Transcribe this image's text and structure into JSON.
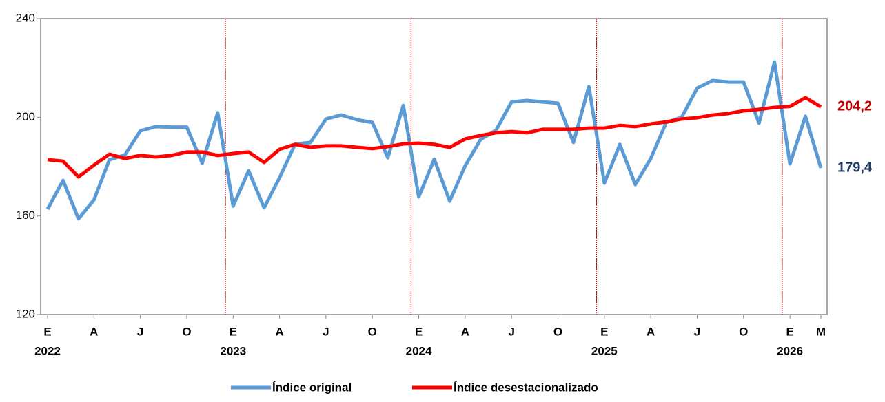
{
  "chart_data": {
    "type": "line",
    "categories": [
      "E",
      null,
      null,
      "A",
      null,
      null,
      "J",
      null,
      null,
      "O",
      null,
      null,
      "E",
      null,
      null,
      "A",
      null,
      null,
      "J",
      null,
      null,
      "O",
      null,
      null,
      "E",
      null,
      null,
      "A",
      null,
      null,
      "J",
      null,
      null,
      "O",
      null,
      null,
      "E",
      null,
      null,
      "A",
      null,
      null,
      "J",
      null,
      null,
      "O",
      null,
      null,
      "E",
      null,
      "M"
    ],
    "years": [
      "2022",
      null,
      null,
      null,
      null,
      null,
      null,
      null,
      null,
      null,
      null,
      null,
      "2023",
      null,
      null,
      null,
      null,
      null,
      null,
      null,
      null,
      null,
      null,
      null,
      "2024",
      null,
      null,
      null,
      null,
      null,
      null,
      null,
      null,
      null,
      null,
      null,
      "2025",
      null,
      null,
      null,
      null,
      null,
      null,
      null,
      null,
      null,
      null,
      null,
      "2026",
      null,
      null
    ],
    "series": [
      {
        "name": "Índice original",
        "color": "#5B9BD5",
        "label_color": "#1F3864",
        "end_label": "179,4",
        "values": [
          162.7,
          174.4,
          158.8,
          166.5,
          182.8,
          184.7,
          194.5,
          196.2,
          196,
          196,
          181.4,
          201.8,
          164,
          178.3,
          163.3,
          175.5,
          189,
          189.8,
          199.3,
          200.9,
          199,
          197.9,
          183.6,
          204.8,
          167.7,
          183,
          166,
          180.3,
          191,
          194.8,
          206.2,
          206.8,
          206.2,
          205.7,
          189.8,
          212.4,
          173.3,
          189,
          172.7,
          183.3,
          197.9,
          200,
          211.8,
          214.9,
          214.3,
          214.3,
          197.6,
          222.4,
          181.1,
          200.4,
          179.4
        ]
      },
      {
        "name": "Índice desestacionalizado",
        "color": "#FF0000",
        "label_color": "#C00000",
        "end_label": "204,2",
        "values": [
          182.8,
          182.2,
          175.8,
          180.6,
          185,
          183.3,
          184.5,
          183.9,
          184.5,
          185.9,
          185.9,
          184.5,
          185.3,
          185.9,
          181.7,
          187,
          189,
          187.8,
          188.4,
          188.4,
          187.8,
          187.3,
          188.1,
          189.2,
          189.5,
          189,
          187.8,
          191.2,
          192.6,
          193.7,
          194.2,
          193.7,
          195.1,
          195.1,
          195.1,
          195.6,
          195.6,
          196.7,
          196.2,
          197.3,
          198.1,
          199.3,
          199.8,
          200.9,
          201.5,
          202.6,
          203.2,
          204,
          204.4,
          207.9,
          204.2
        ]
      }
    ],
    "ylim": [
      120,
      240
    ],
    "yticks": [
      120,
      160,
      200,
      240
    ]
  }
}
